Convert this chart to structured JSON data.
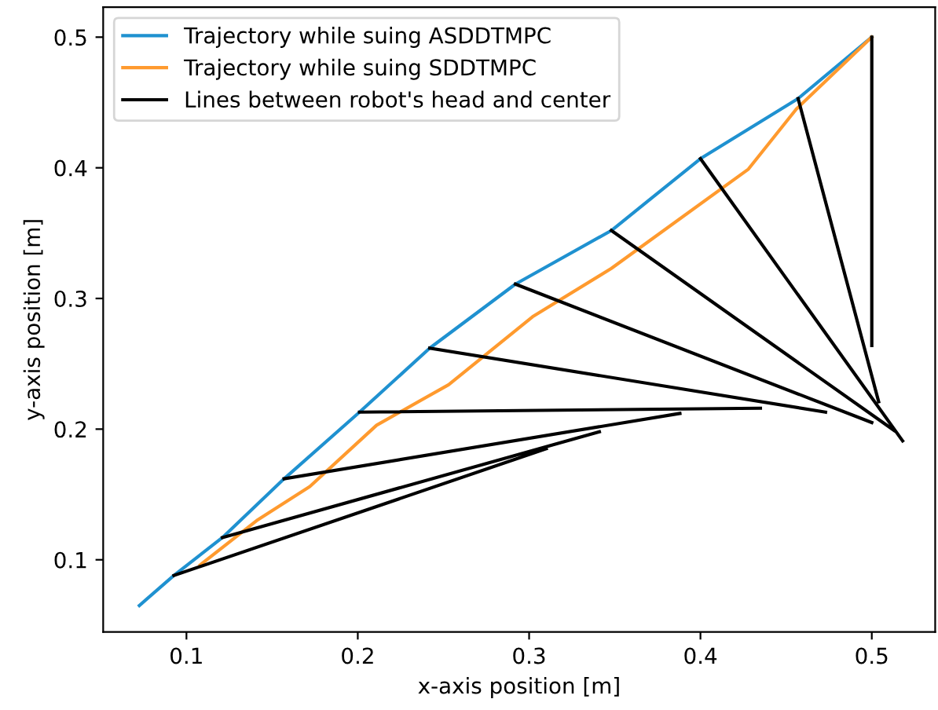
{
  "chart_data": {
    "type": "line",
    "xlabel": "x-axis position [m]",
    "ylabel": "y-axis position [m]",
    "xlim": [
      0.0514,
      0.537
    ],
    "ylim": [
      0.0448,
      0.523
    ],
    "xticks": [
      0.1,
      0.2,
      0.3,
      0.4,
      0.5
    ],
    "yticks": [
      0.1,
      0.2,
      0.3,
      0.4,
      0.5
    ],
    "grid": false,
    "legend": "top left",
    "line_style": "solid",
    "marker": "none",
    "series": [
      {
        "name": "Trajectory while suing ASDDTMPC",
        "color": "#1f91d0",
        "x": [
          0.0725,
          0.0927,
          0.121,
          0.157,
          0.201,
          0.242,
          0.292,
          0.348,
          0.4,
          0.457,
          0.5
        ],
        "values": [
          0.065,
          0.088,
          0.117,
          0.162,
          0.213,
          0.262,
          0.311,
          0.352,
          0.407,
          0.453,
          0.5
        ]
      },
      {
        "name": "Trajectory while suing SDDTMPC",
        "color": "#ff9a2e",
        "x": [
          0.108,
          0.141,
          0.172,
          0.211,
          0.253,
          0.302,
          0.348,
          0.428,
          0.456,
          0.5
        ],
        "values": [
          0.096,
          0.13,
          0.156,
          0.203,
          0.234,
          0.286,
          0.323,
          0.399,
          0.445,
          0.5
        ]
      },
      {
        "name": "Lines between robot's head and center",
        "color": "#000000",
        "x": [
          0.0927,
          0.31,
          null,
          0.121,
          0.341,
          null,
          0.157,
          0.388,
          null,
          0.201,
          0.435,
          null,
          0.242,
          0.473,
          null,
          0.292,
          0.5,
          null,
          0.348,
          0.513,
          null,
          0.4,
          0.518,
          null,
          0.457,
          0.504,
          null,
          0.5,
          0.5
        ],
        "values": [
          0.088,
          0.185,
          null,
          0.117,
          0.198,
          null,
          0.162,
          0.212,
          null,
          0.213,
          0.216,
          null,
          0.262,
          0.213,
          null,
          0.311,
          0.205,
          null,
          0.352,
          0.199,
          null,
          0.407,
          0.191,
          null,
          0.453,
          0.221,
          null,
          0.5,
          0.264
        ]
      }
    ]
  }
}
